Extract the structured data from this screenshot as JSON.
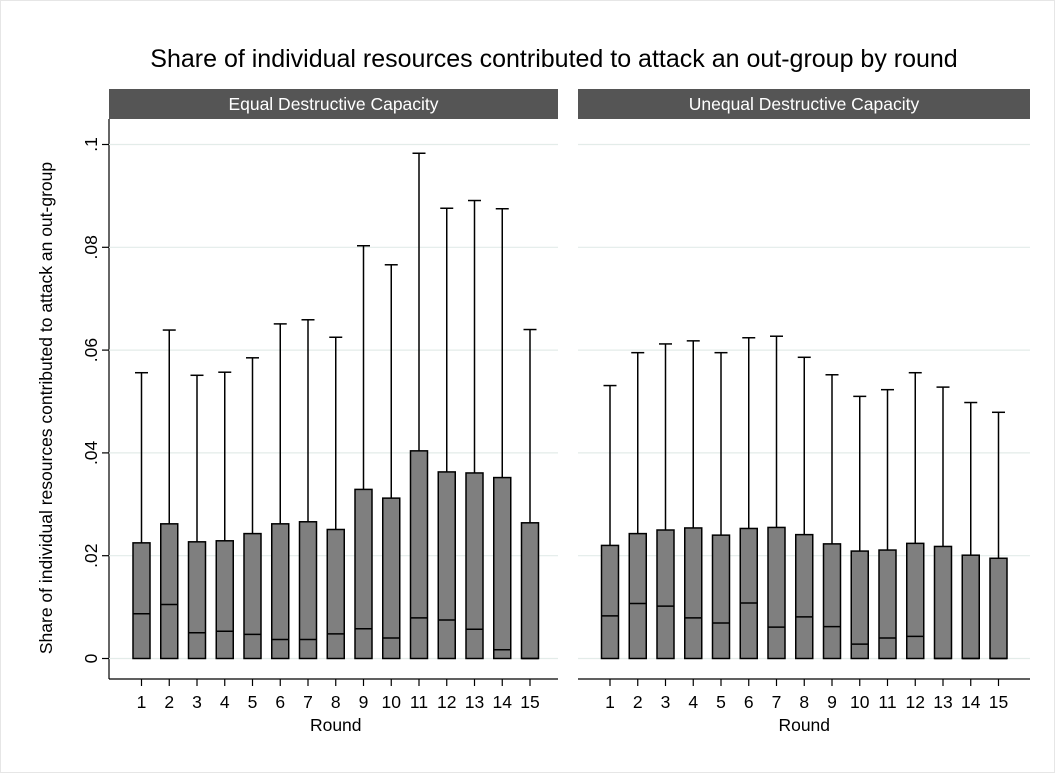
{
  "chart_data": {
    "type": "box",
    "title": "Share of individual resources contributed to attack an out-group by round",
    "ylabel": "Share of individual resources contributed to attack an out-group",
    "ylim": [
      0,
      0.105
    ],
    "yticks": [
      0,
      0.02,
      0.04,
      0.06,
      0.08,
      0.1
    ],
    "ytick_labels": [
      "0",
      ".02",
      ".04",
      ".06",
      ".08",
      ".1"
    ],
    "grid": true,
    "colors": {
      "box_fill": "#7f7f7f",
      "strip": "#555555",
      "grid": "#e3ece9"
    },
    "panels": [
      {
        "title": "Equal Destructive Capacity",
        "xlabel": "Round",
        "categories": [
          "1",
          "2",
          "3",
          "4",
          "5",
          "6",
          "7",
          "8",
          "9",
          "10",
          "11",
          "12",
          "13",
          "14",
          "15"
        ],
        "q1": [
          0,
          0,
          0,
          0,
          0,
          0,
          0,
          0,
          0,
          0,
          0,
          0,
          0,
          0,
          0
        ],
        "median": [
          0.0087,
          0.0105,
          0.005,
          0.0053,
          0.0047,
          0.0037,
          0.0037,
          0.0048,
          0.0058,
          0.004,
          0.0079,
          0.0075,
          0.0057,
          0.0017,
          0
        ],
        "q3": [
          0.0225,
          0.0262,
          0.0227,
          0.0229,
          0.0243,
          0.0262,
          0.0266,
          0.0251,
          0.0329,
          0.0312,
          0.0404,
          0.0363,
          0.0361,
          0.0352,
          0.0264
        ],
        "whisker_low": [
          0,
          0,
          0,
          0,
          0,
          0,
          0,
          0,
          0,
          0,
          0,
          0,
          0,
          0,
          0
        ],
        "whisker_high": [
          0.0556,
          0.0639,
          0.0551,
          0.0557,
          0.0585,
          0.0651,
          0.0659,
          0.0625,
          0.0803,
          0.0766,
          0.0983,
          0.0876,
          0.0891,
          0.0875,
          0.064
        ]
      },
      {
        "title": "Unequal Destructive Capacity",
        "xlabel": "Round",
        "categories": [
          "1",
          "2",
          "3",
          "4",
          "5",
          "6",
          "7",
          "8",
          "9",
          "10",
          "11",
          "12",
          "13",
          "14",
          "15"
        ],
        "q1": [
          0,
          0,
          0,
          0,
          0,
          0,
          0,
          0,
          0,
          0,
          0,
          0,
          0,
          0,
          0
        ],
        "median": [
          0.0083,
          0.0107,
          0.0102,
          0.0079,
          0.0069,
          0.0108,
          0.0061,
          0.0081,
          0.0062,
          0.0028,
          0.004,
          0.0043,
          0,
          0,
          0
        ],
        "q3": [
          0.022,
          0.0243,
          0.025,
          0.0254,
          0.024,
          0.0253,
          0.0255,
          0.0241,
          0.0223,
          0.0209,
          0.0211,
          0.0224,
          0.0218,
          0.0201,
          0.0195
        ],
        "whisker_low": [
          0,
          0,
          0,
          0,
          0,
          0,
          0,
          0,
          0,
          0,
          0,
          0,
          0,
          0,
          0
        ],
        "whisker_high": [
          0.0531,
          0.0595,
          0.0612,
          0.0618,
          0.0595,
          0.0624,
          0.0627,
          0.0586,
          0.0552,
          0.051,
          0.0523,
          0.0556,
          0.0528,
          0.0498,
          0.0479
        ]
      }
    ]
  }
}
